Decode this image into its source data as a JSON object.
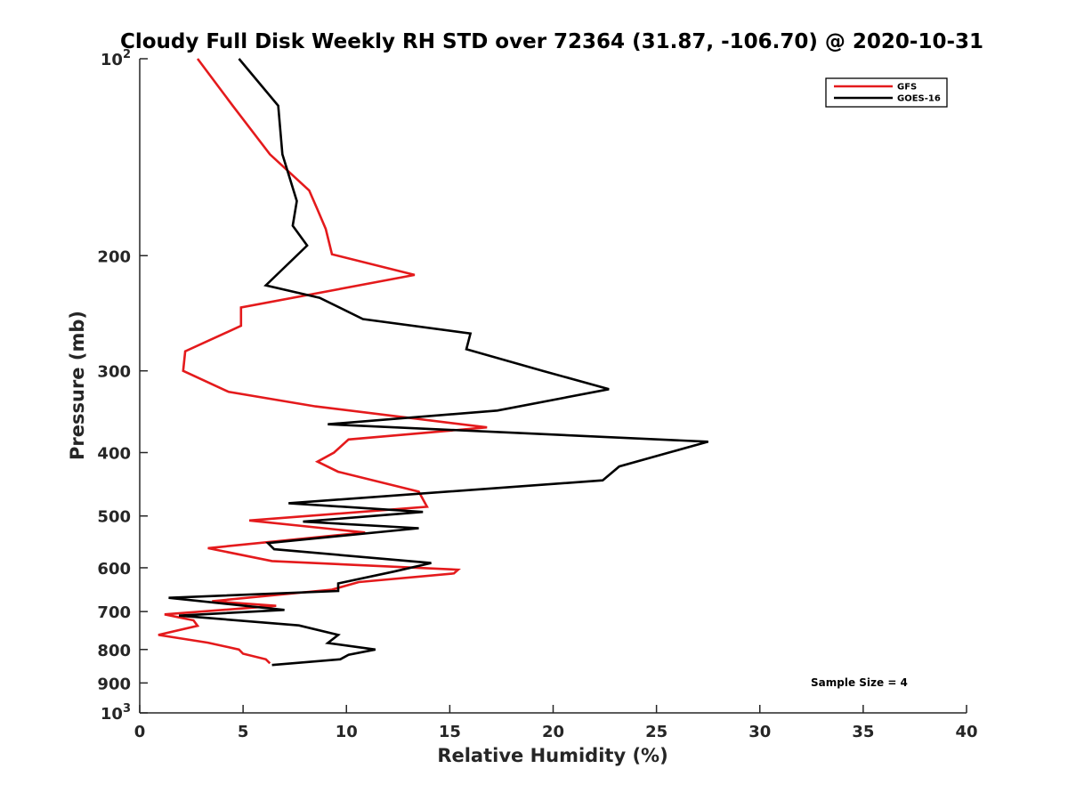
{
  "chart_data": {
    "type": "line",
    "title": "Cloudy Full Disk Weekly RH STD over 72364 (31.87, -106.70) @ 2020-10-31",
    "xlabel": "Relative Humidity (%)",
    "ylabel": "Pressure (mb)",
    "xlim": [
      0,
      40
    ],
    "ylim": [
      100,
      1000
    ],
    "y_scale": "log",
    "y_reversed": true,
    "grid": false,
    "legend_position": "top-right",
    "x_ticks": [
      "0",
      "5",
      "10",
      "15",
      "20",
      "25",
      "30",
      "35",
      "40"
    ],
    "y_ticks": [
      {
        "value": 100,
        "base": "10",
        "exp": "2",
        "label": ""
      },
      {
        "value": 200,
        "base": "",
        "exp": "",
        "label": "200"
      },
      {
        "value": 300,
        "base": "",
        "exp": "",
        "label": "300"
      },
      {
        "value": 400,
        "base": "",
        "exp": "",
        "label": "400"
      },
      {
        "value": 500,
        "base": "",
        "exp": "",
        "label": "500"
      },
      {
        "value": 600,
        "base": "",
        "exp": "",
        "label": "600"
      },
      {
        "value": 700,
        "base": "",
        "exp": "",
        "label": "700"
      },
      {
        "value": 800,
        "base": "",
        "exp": "",
        "label": "800"
      },
      {
        "value": 900,
        "base": "",
        "exp": "",
        "label": "900"
      },
      {
        "value": 1000,
        "base": "10",
        "exp": "3",
        "label": ""
      }
    ],
    "annotation": "Sample Size = 4",
    "series": [
      {
        "name": "GFS",
        "color": "#e41a1c",
        "points": [
          [
            2.8,
            100
          ],
          [
            4.5,
            118
          ],
          [
            6.3,
            140
          ],
          [
            8.2,
            159
          ],
          [
            8.6,
            170
          ],
          [
            9.0,
            182
          ],
          [
            9.3,
            199
          ],
          [
            13.3,
            214
          ],
          [
            4.9,
            240
          ],
          [
            4.9,
            256
          ],
          [
            2.2,
            280
          ],
          [
            2.1,
            300
          ],
          [
            4.3,
            323
          ],
          [
            8.5,
            340
          ],
          [
            16.8,
            366
          ],
          [
            10.1,
            382
          ],
          [
            9.4,
            400
          ],
          [
            8.6,
            413
          ],
          [
            9.6,
            428
          ],
          [
            13.5,
            459
          ],
          [
            13.9,
            484
          ],
          [
            5.3,
            508
          ],
          [
            10.9,
            530
          ],
          [
            3.3,
            560
          ],
          [
            6.4,
            586
          ],
          [
            15.4,
            604
          ],
          [
            15.2,
            612
          ],
          [
            10.6,
            631
          ],
          [
            9.3,
            648
          ],
          [
            3.5,
            675
          ],
          [
            6.6,
            686
          ],
          [
            1.2,
            707
          ],
          [
            2.6,
            722
          ],
          [
            2.8,
            736
          ],
          [
            0.9,
            760
          ],
          [
            3.3,
            781
          ],
          [
            4.8,
            800
          ],
          [
            5.0,
            812
          ],
          [
            6.1,
            828
          ],
          [
            6.3,
            840
          ]
        ]
      },
      {
        "name": "GOES-16",
        "color": "#000000",
        "points": [
          [
            4.8,
            100
          ],
          [
            6.7,
            118
          ],
          [
            6.9,
            140
          ],
          [
            7.6,
            165
          ],
          [
            7.4,
            180
          ],
          [
            8.1,
            193
          ],
          [
            6.1,
            222
          ],
          [
            8.7,
            232
          ],
          [
            10.8,
            250
          ],
          [
            16.0,
            263
          ],
          [
            15.8,
            278
          ],
          [
            19.5,
            300
          ],
          [
            22.7,
            320
          ],
          [
            17.3,
            345
          ],
          [
            9.1,
            362
          ],
          [
            27.5,
            385
          ],
          [
            25.6,
            400
          ],
          [
            23.2,
            420
          ],
          [
            22.4,
            441
          ],
          [
            7.2,
            478
          ],
          [
            13.7,
            493
          ],
          [
            7.9,
            510
          ],
          [
            13.5,
            522
          ],
          [
            6.2,
            550
          ],
          [
            6.5,
            562
          ],
          [
            14.1,
            590
          ],
          [
            12.3,
            608
          ],
          [
            9.6,
            634
          ],
          [
            9.6,
            651
          ],
          [
            1.4,
            667
          ],
          [
            7.0,
            696
          ],
          [
            1.9,
            710
          ],
          [
            7.7,
            735
          ],
          [
            9.6,
            760
          ],
          [
            9.1,
            782
          ],
          [
            11.4,
            800
          ],
          [
            10.1,
            815
          ],
          [
            9.7,
            828
          ],
          [
            6.4,
            845
          ]
        ]
      }
    ]
  }
}
